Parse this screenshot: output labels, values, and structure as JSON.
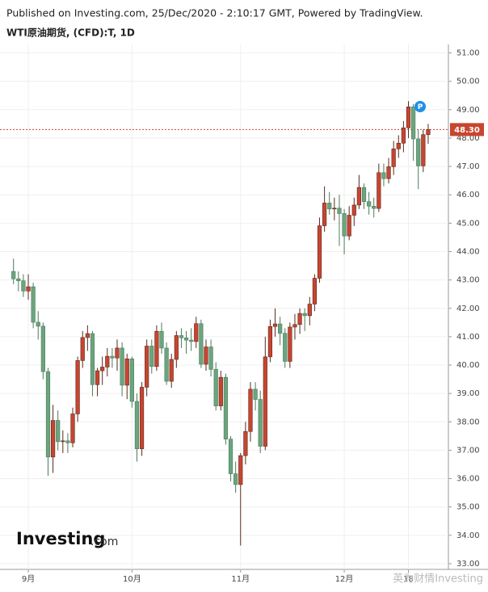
{
  "chart_data": {
    "type": "candlestick",
    "published": "Published on Investing.com, 25/Dec/2020 - 2:10:17 GMT, Powered by TradingView.",
    "title": "WTI原油期货, (CFD):T, 1D",
    "logo": "Investing",
    "logo_suffix": ".com",
    "watermark": "英为财情Investing",
    "marker": "P",
    "up_color": "#c8452f",
    "down_color": "#6aa57e",
    "grid": true,
    "last_price": {
      "value": 48.3,
      "label": "48.30"
    },
    "categories": [
      null,
      null,
      null,
      "9月",
      null,
      null,
      null,
      null,
      null,
      null,
      null,
      null,
      null,
      null,
      null,
      null,
      null,
      null,
      null,
      null,
      null,
      null,
      null,
      null,
      "10月",
      null,
      null,
      null,
      null,
      null,
      null,
      null,
      null,
      null,
      null,
      null,
      null,
      null,
      null,
      null,
      null,
      null,
      null,
      null,
      null,
      null,
      "11月",
      null,
      null,
      null,
      null,
      null,
      null,
      null,
      null,
      null,
      null,
      null,
      null,
      null,
      null,
      null,
      null,
      null,
      null,
      null,
      null,
      "12月",
      null,
      null,
      null,
      null,
      null,
      null,
      null,
      null,
      null,
      null,
      null,
      null,
      "18",
      null,
      null,
      null,
      null
    ],
    "ohlc": [
      [
        43.3,
        43.75,
        42.85,
        43.04
      ],
      [
        43.04,
        43.3,
        42.6,
        42.97
      ],
      [
        42.97,
        43.2,
        42.4,
        42.61
      ],
      [
        42.61,
        43.2,
        42.3,
        42.76
      ],
      [
        42.76,
        42.9,
        41.3,
        41.51
      ],
      [
        41.51,
        41.9,
        40.9,
        41.37
      ],
      [
        41.37,
        41.5,
        39.5,
        39.77
      ],
      [
        39.77,
        39.9,
        36.1,
        36.76
      ],
      [
        36.76,
        38.6,
        36.2,
        38.05
      ],
      [
        38.05,
        38.4,
        37.0,
        37.3
      ],
      [
        37.3,
        37.7,
        36.9,
        37.33
      ],
      [
        37.33,
        37.6,
        36.9,
        37.26
      ],
      [
        37.26,
        38.5,
        37.1,
        38.28
      ],
      [
        38.28,
        40.3,
        38.0,
        40.16
      ],
      [
        40.16,
        41.2,
        39.9,
        40.97
      ],
      [
        40.97,
        41.4,
        40.5,
        41.11
      ],
      [
        41.11,
        41.2,
        38.9,
        39.31
      ],
      [
        39.31,
        39.9,
        38.9,
        39.8
      ],
      [
        39.8,
        40.3,
        39.3,
        39.93
      ],
      [
        39.93,
        40.6,
        39.6,
        40.31
      ],
      [
        40.31,
        40.6,
        39.9,
        40.25
      ],
      [
        40.25,
        40.9,
        39.8,
        40.6
      ],
      [
        40.6,
        40.8,
        38.9,
        39.29
      ],
      [
        39.29,
        40.4,
        38.8,
        40.22
      ],
      [
        40.22,
        40.3,
        38.5,
        38.72
      ],
      [
        38.72,
        39.0,
        36.6,
        37.05
      ],
      [
        37.05,
        39.4,
        36.8,
        39.22
      ],
      [
        39.22,
        40.9,
        38.9,
        40.67
      ],
      [
        40.67,
        40.9,
        39.7,
        39.95
      ],
      [
        39.95,
        41.4,
        39.8,
        41.19
      ],
      [
        41.19,
        41.5,
        40.4,
        40.6
      ],
      [
        40.6,
        40.8,
        39.3,
        39.43
      ],
      [
        39.43,
        40.4,
        39.2,
        40.2
      ],
      [
        40.2,
        41.2,
        39.9,
        41.04
      ],
      [
        41.04,
        41.3,
        40.6,
        40.96
      ],
      [
        40.96,
        41.2,
        40.4,
        40.88
      ],
      [
        40.88,
        41.3,
        40.5,
        40.83
      ],
      [
        40.83,
        41.7,
        40.6,
        41.46
      ],
      [
        41.46,
        41.6,
        39.9,
        40.03
      ],
      [
        40.03,
        40.9,
        39.8,
        40.64
      ],
      [
        40.64,
        40.9,
        39.6,
        39.85
      ],
      [
        39.85,
        40.1,
        38.4,
        38.56
      ],
      [
        38.56,
        39.8,
        38.4,
        39.57
      ],
      [
        39.57,
        39.7,
        37.2,
        37.39
      ],
      [
        37.39,
        37.5,
        35.9,
        36.17
      ],
      [
        36.17,
        36.6,
        35.5,
        35.79
      ],
      [
        35.79,
        36.9,
        33.64,
        36.81
      ],
      [
        36.81,
        38.0,
        36.5,
        37.66
      ],
      [
        37.66,
        39.4,
        37.3,
        39.15
      ],
      [
        39.15,
        39.4,
        38.4,
        38.79
      ],
      [
        38.79,
        39.1,
        36.9,
        37.14
      ],
      [
        37.14,
        41.0,
        37.0,
        40.29
      ],
      [
        40.29,
        41.6,
        40.1,
        41.36
      ],
      [
        41.36,
        42.0,
        41.0,
        41.45
      ],
      [
        41.45,
        41.7,
        40.7,
        41.12
      ],
      [
        41.12,
        41.3,
        39.9,
        40.13
      ],
      [
        40.13,
        41.5,
        39.9,
        41.34
      ],
      [
        41.34,
        41.8,
        40.9,
        41.43
      ],
      [
        41.43,
        42.0,
        41.1,
        41.82
      ],
      [
        41.82,
        42.0,
        41.2,
        41.74
      ],
      [
        41.74,
        42.4,
        41.4,
        42.15
      ],
      [
        42.15,
        43.2,
        41.9,
        43.06
      ],
      [
        43.06,
        45.2,
        42.9,
        44.91
      ],
      [
        44.91,
        46.3,
        44.7,
        45.71
      ],
      [
        45.71,
        46.1,
        45.3,
        45.5
      ],
      [
        45.5,
        45.9,
        45.1,
        45.53
      ],
      [
        45.53,
        46.0,
        44.2,
        45.34
      ],
      [
        45.34,
        45.5,
        43.9,
        44.55
      ],
      [
        44.55,
        45.6,
        44.4,
        45.28
      ],
      [
        45.28,
        45.9,
        44.9,
        45.64
      ],
      [
        45.64,
        46.7,
        45.5,
        46.26
      ],
      [
        46.26,
        46.4,
        45.5,
        45.76
      ],
      [
        45.76,
        46.1,
        45.3,
        45.6
      ],
      [
        45.6,
        45.9,
        45.2,
        45.52
      ],
      [
        45.52,
        47.1,
        45.4,
        46.78
      ],
      [
        46.78,
        47.1,
        46.3,
        46.57
      ],
      [
        46.57,
        47.3,
        46.4,
        46.99
      ],
      [
        46.99,
        47.9,
        46.7,
        47.62
      ],
      [
        47.62,
        48.1,
        47.3,
        47.82
      ],
      [
        47.82,
        48.6,
        47.5,
        48.36
      ],
      [
        48.36,
        49.3,
        48.0,
        49.1
      ],
      [
        49.1,
        49.2,
        47.2,
        47.97
      ],
      [
        47.97,
        48.3,
        46.2,
        47.02
      ],
      [
        47.02,
        48.3,
        46.8,
        48.12
      ],
      [
        48.12,
        48.5,
        47.8,
        48.3
      ]
    ],
    "ylim": [
      32.8,
      51.3
    ],
    "yticks": [
      {
        "value": 33,
        "label": "33.00"
      },
      {
        "value": 34,
        "label": "34.00"
      },
      {
        "value": 35,
        "label": "35.00"
      },
      {
        "value": 36,
        "label": "36.00"
      },
      {
        "value": 37,
        "label": "37.00"
      },
      {
        "value": 38,
        "label": "38.00"
      },
      {
        "value": 39,
        "label": "39.00"
      },
      {
        "value": 40,
        "label": "40.00"
      },
      {
        "value": 41,
        "label": "41.00"
      },
      {
        "value": 42,
        "label": "42.00"
      },
      {
        "value": 43,
        "label": "43.00"
      },
      {
        "value": 44,
        "label": "44.00"
      },
      {
        "value": 45,
        "label": "45.00"
      },
      {
        "value": 46,
        "label": "46.00"
      },
      {
        "value": 47,
        "label": "47.00"
      },
      {
        "value": 48,
        "label": "48.00"
      },
      {
        "value": 49,
        "label": "49.00"
      },
      {
        "value": 50,
        "label": "50.00"
      },
      {
        "value": 51,
        "label": "51.00"
      }
    ]
  }
}
